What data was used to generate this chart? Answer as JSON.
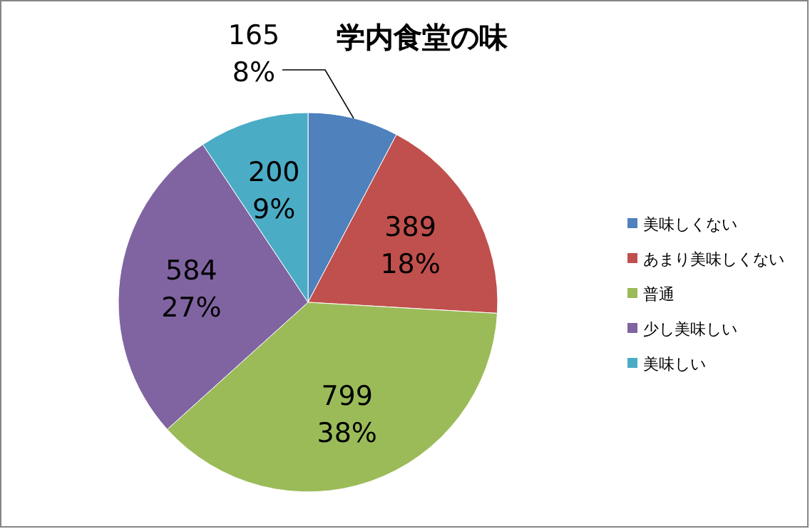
{
  "chart_data": {
    "type": "pie",
    "title": "学内食堂の味",
    "categories": [
      "美味しくない",
      "あまり美味しくない",
      "普通",
      "少し美味しい",
      "美味しい"
    ],
    "values": [
      165,
      389,
      799,
      584,
      200
    ],
    "colors": [
      "#4f81bd",
      "#c0504d",
      "#9bbb59",
      "#8064a2",
      "#4bacc6"
    ],
    "value_labels": [
      "165\n8%",
      "389\n18%",
      "799\n38%",
      "584\n27%",
      "200\n9%"
    ],
    "legend": "right"
  }
}
